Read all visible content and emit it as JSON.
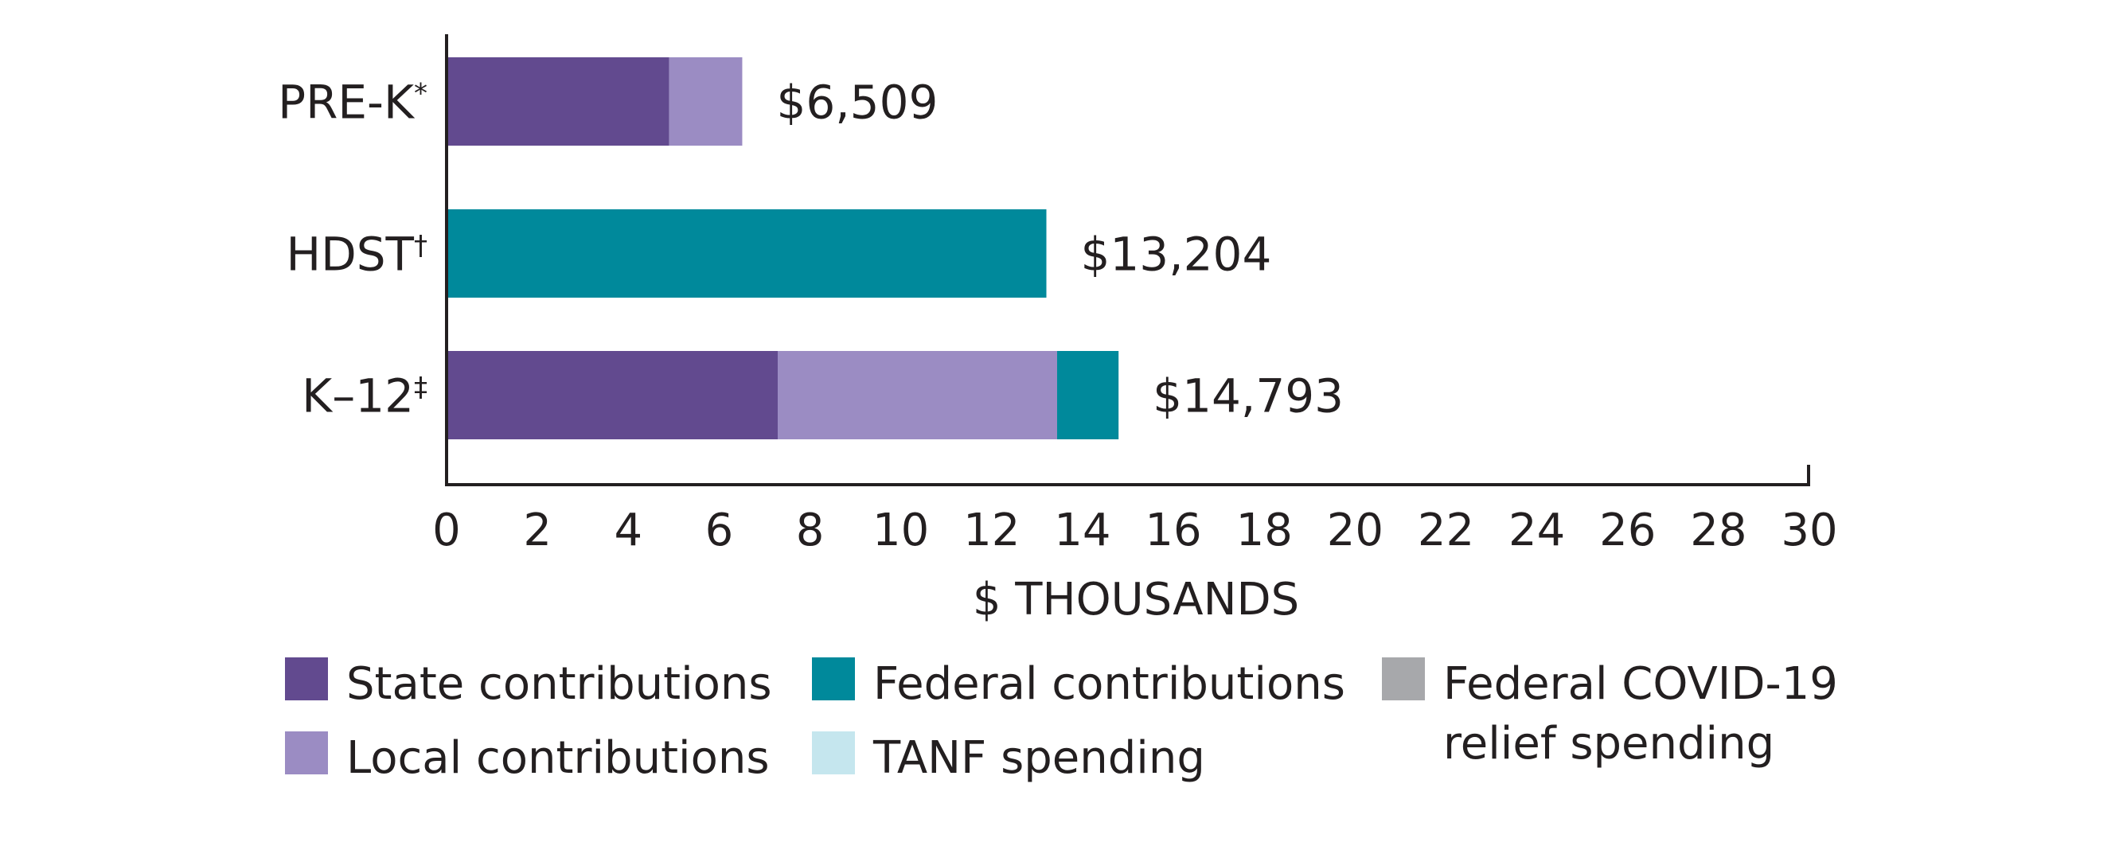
{
  "chart_data": {
    "type": "bar",
    "orientation": "horizontal",
    "stacked": true,
    "title": "",
    "xlabel": "$ THOUSANDS",
    "ylabel": "",
    "xlim": [
      0,
      30
    ],
    "xticks": [
      0,
      2,
      4,
      6,
      8,
      10,
      12,
      14,
      16,
      18,
      20,
      22,
      24,
      26,
      28,
      30
    ],
    "grid": false,
    "legend_position": "bottom",
    "categories": [
      {
        "label": "PRE-K",
        "marker": "*"
      },
      {
        "label": "HDST",
        "marker": "†"
      },
      {
        "label": "K–12",
        "marker": "‡"
      }
    ],
    "totals": [
      6.509,
      13.204,
      14.793
    ],
    "total_labels": [
      "$6,509",
      "$13,204",
      "$14,793"
    ],
    "series": [
      {
        "name": "State contributions",
        "color": "#624a8f",
        "values": [
          4.9,
          0,
          7.29
        ]
      },
      {
        "name": "Local contributions",
        "color": "#9b8cc3",
        "values": [
          1.609,
          0,
          6.15
        ]
      },
      {
        "name": "Federal contributions",
        "color": "#00899b",
        "values": [
          0,
          13.204,
          1.353
        ]
      },
      {
        "name": "TANF spending",
        "color": "#c5e6ee",
        "values": [
          0,
          0,
          0
        ]
      },
      {
        "name": "Federal COVID-19 relief spending",
        "color": "#a7a8ab",
        "values": [
          0,
          0,
          0
        ]
      }
    ],
    "legend": [
      {
        "lines": [
          "State contributions"
        ],
        "color": "#624a8f"
      },
      {
        "lines": [
          "Local contributions"
        ],
        "color": "#9b8cc3"
      },
      {
        "lines": [
          "Federal contributions"
        ],
        "color": "#00899b"
      },
      {
        "lines": [
          "TANF spending"
        ],
        "color": "#c5e6ee"
      },
      {
        "lines": [
          "Federal COVID-19",
          "relief spending"
        ],
        "color": "#a7a8ab"
      }
    ]
  }
}
